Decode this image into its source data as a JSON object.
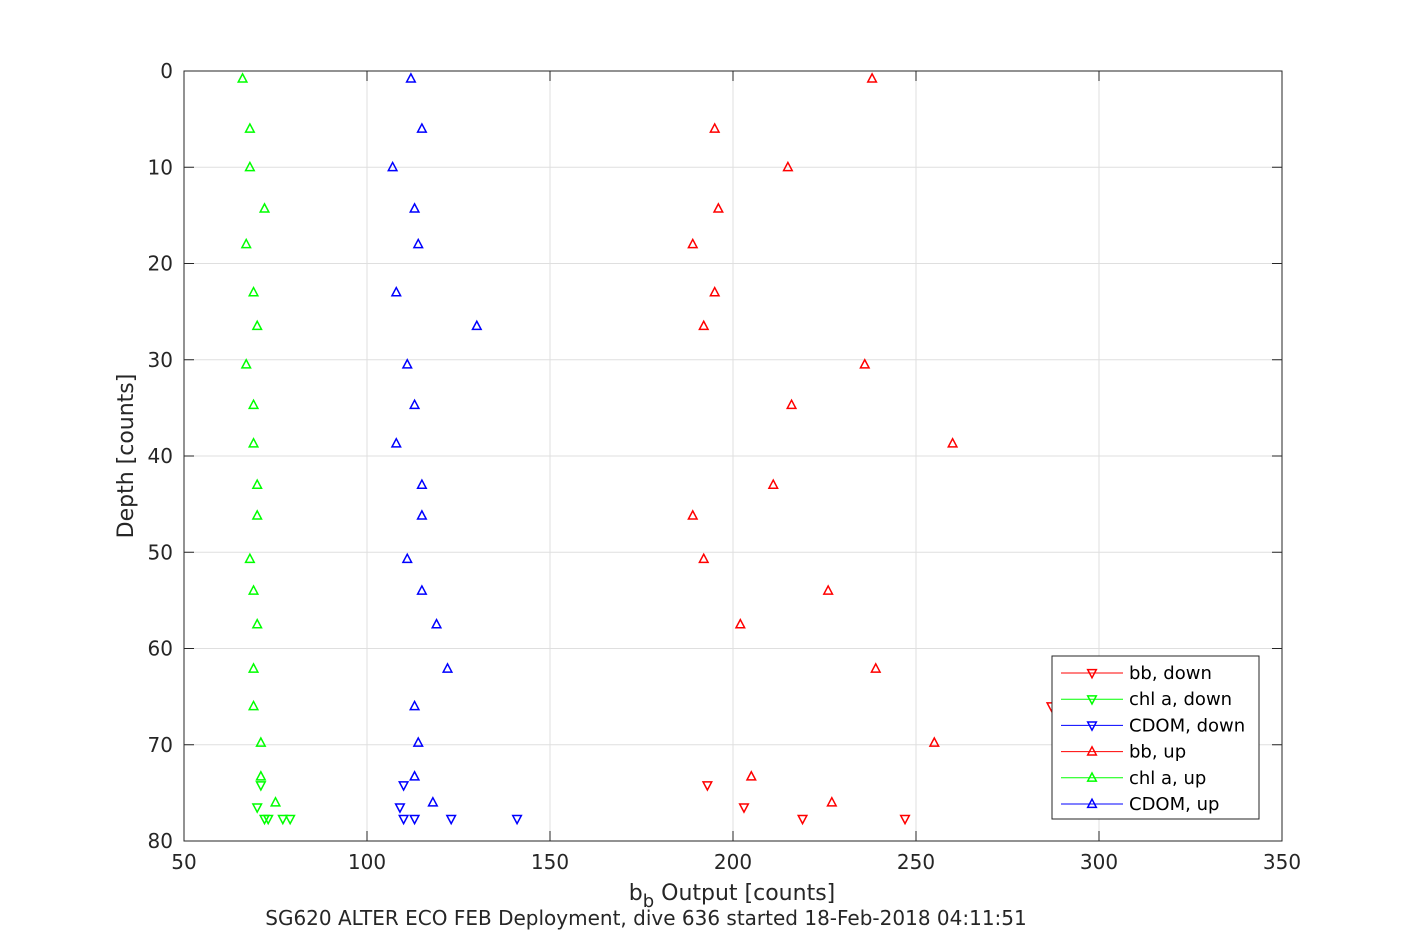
{
  "chart_data": {
    "type": "scatter",
    "title": "SG620 ALTER ECO FEB Deployment, dive 636 started 18-Feb-2018 04:11:51",
    "xlabel_main": "b",
    "xlabel_sub": "b",
    "xlabel_rest": " Output [counts]",
    "ylabel": "Depth [counts]",
    "xlim": [
      50,
      350
    ],
    "ylim": [
      0,
      80
    ],
    "y_reversed": true,
    "xticks": [
      50,
      100,
      150,
      200,
      250,
      300,
      350
    ],
    "yticks": [
      0,
      10,
      20,
      30,
      40,
      50,
      60,
      70,
      80
    ],
    "xtick_labels": [
      "50",
      "100",
      "150",
      "200",
      "250",
      "300",
      "350"
    ],
    "ytick_labels": [
      "0",
      "10",
      "20",
      "30",
      "40",
      "50",
      "60",
      "70",
      "80"
    ],
    "grid": true,
    "legend_position": "bottom-right",
    "series": [
      {
        "name": "bb, down",
        "color": "#ff0000",
        "marker": "triangle-down",
        "points": [
          [
            193,
            74.2
          ],
          [
            203,
            76.5
          ],
          [
            219,
            77.7
          ],
          [
            247,
            77.7
          ],
          [
            287,
            66.0
          ]
        ]
      },
      {
        "name": "chl a, down",
        "color": "#00ff00",
        "marker": "triangle-down",
        "points": [
          [
            71,
            74.2
          ],
          [
            70,
            76.5
          ],
          [
            72,
            77.7
          ],
          [
            73,
            77.7
          ],
          [
            77,
            77.7
          ],
          [
            79,
            77.7
          ]
        ]
      },
      {
        "name": "CDOM, down",
        "color": "#0000ff",
        "marker": "triangle-down",
        "points": [
          [
            110,
            74.2
          ],
          [
            109,
            76.5
          ],
          [
            110,
            77.7
          ],
          [
            113,
            77.7
          ],
          [
            123,
            77.7
          ],
          [
            141,
            77.7
          ]
        ]
      },
      {
        "name": "bb, up",
        "color": "#ff0000",
        "marker": "triangle-up",
        "points": [
          [
            238,
            0.8
          ],
          [
            195,
            6.0
          ],
          [
            215,
            10.0
          ],
          [
            196,
            14.3
          ],
          [
            189,
            18.0
          ],
          [
            195,
            23.0
          ],
          [
            192,
            26.5
          ],
          [
            236,
            30.5
          ],
          [
            216,
            34.7
          ],
          [
            260,
            38.7
          ],
          [
            211,
            43.0
          ],
          [
            189,
            46.2
          ],
          [
            192,
            50.7
          ],
          [
            226,
            54.0
          ],
          [
            202,
            57.5
          ],
          [
            239,
            62.1
          ],
          [
            255,
            69.8
          ],
          [
            205,
            73.3
          ],
          [
            227,
            76.0
          ]
        ]
      },
      {
        "name": "chl a, up",
        "color": "#00ff00",
        "marker": "triangle-up",
        "points": [
          [
            66,
            0.8
          ],
          [
            68,
            6.0
          ],
          [
            68,
            10.0
          ],
          [
            72,
            14.3
          ],
          [
            67,
            18.0
          ],
          [
            69,
            23.0
          ],
          [
            70,
            26.5
          ],
          [
            67,
            30.5
          ],
          [
            69,
            34.7
          ],
          [
            69,
            38.7
          ],
          [
            70,
            43.0
          ],
          [
            70,
            46.2
          ],
          [
            68,
            50.7
          ],
          [
            69,
            54.0
          ],
          [
            70,
            57.5
          ],
          [
            69,
            62.1
          ],
          [
            69,
            66.0
          ],
          [
            71,
            69.8
          ],
          [
            71,
            73.3
          ],
          [
            75,
            76.0
          ]
        ]
      },
      {
        "name": "CDOM, up",
        "color": "#0000ff",
        "marker": "triangle-up",
        "points": [
          [
            112,
            0.8
          ],
          [
            115,
            6.0
          ],
          [
            107,
            10.0
          ],
          [
            113,
            14.3
          ],
          [
            114,
            18.0
          ],
          [
            108,
            23.0
          ],
          [
            130,
            26.5
          ],
          [
            111,
            30.5
          ],
          [
            113,
            34.7
          ],
          [
            108,
            38.7
          ],
          [
            115,
            43.0
          ],
          [
            115,
            46.2
          ],
          [
            111,
            50.7
          ],
          [
            115,
            54.0
          ],
          [
            119,
            57.5
          ],
          [
            122,
            62.1
          ],
          [
            113,
            66.0
          ],
          [
            114,
            69.8
          ],
          [
            113,
            73.3
          ],
          [
            118,
            76.0
          ]
        ]
      }
    ]
  }
}
